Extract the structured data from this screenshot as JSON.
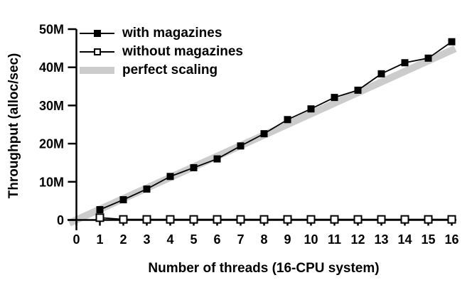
{
  "colors": {
    "foreground": "#000000",
    "background": "#ffffff",
    "band_gray": "#cccccc"
  },
  "legend": {
    "items": [
      {
        "label": "with magazines",
        "swatch": "line-with-filled-square"
      },
      {
        "label": "without magazines",
        "swatch": "line-with-open-square"
      },
      {
        "label": "perfect scaling",
        "swatch": "gray-band"
      }
    ]
  },
  "chart_data": {
    "type": "line",
    "title": "",
    "xlabel": "Number of threads (16-CPU system)",
    "ylabel": "Throughput (alloc/sec)",
    "xlim": [
      0,
      16
    ],
    "ylim_millions": [
      0,
      50
    ],
    "grid": false,
    "legend_position": "top-left",
    "x_ticks": [
      {
        "value": 0,
        "label": "0"
      },
      {
        "value": 1,
        "label": "1"
      },
      {
        "value": 2,
        "label": "2"
      },
      {
        "value": 3,
        "label": "3"
      },
      {
        "value": 4,
        "label": "4"
      },
      {
        "value": 5,
        "label": "5"
      },
      {
        "value": 6,
        "label": "6"
      },
      {
        "value": 7,
        "label": "7"
      },
      {
        "value": 8,
        "label": "8"
      },
      {
        "value": 9,
        "label": "9"
      },
      {
        "value": 10,
        "label": "10"
      },
      {
        "value": 11,
        "label": "11"
      },
      {
        "value": 12,
        "label": "12"
      },
      {
        "value": 13,
        "label": "13"
      },
      {
        "value": 14,
        "label": "14"
      },
      {
        "value": 15,
        "label": "15"
      },
      {
        "value": 16,
        "label": "16"
      }
    ],
    "y_ticks": [
      {
        "value_millions": 0,
        "label": "0"
      },
      {
        "value_millions": 10,
        "label": "10M"
      },
      {
        "value_millions": 20,
        "label": "20M"
      },
      {
        "value_millions": 30,
        "label": "30M"
      },
      {
        "value_millions": 40,
        "label": "40M"
      },
      {
        "value_millions": 50,
        "label": "50M"
      }
    ],
    "x": [
      1,
      2,
      3,
      4,
      5,
      6,
      7,
      8,
      9,
      10,
      11,
      12,
      13,
      14,
      15,
      16
    ],
    "series": [
      {
        "name": "with magazines",
        "marker": "filled-square",
        "color": "#000000",
        "values_millions": [
          2.7,
          5.3,
          8.1,
          11.4,
          13.7,
          16.0,
          19.4,
          22.6,
          26.3,
          29.1,
          32.1,
          34.0,
          38.3,
          41.2,
          42.4,
          46.7
        ]
      },
      {
        "name": "without magazines",
        "marker": "open-square",
        "color": "#000000",
        "values_millions": [
          0.6,
          0.15,
          0.15,
          0.15,
          0.15,
          0.15,
          0.15,
          0.15,
          0.15,
          0.15,
          0.15,
          0.15,
          0.15,
          0.15,
          0.15,
          0.15
        ]
      }
    ],
    "band": {
      "name": "perfect scaling",
      "color": "#cccccc",
      "x_start": -0.3,
      "value_start_millions": -0.8,
      "x_end": 16.15,
      "value_end_millions": 44.9,
      "thickness_px": 10
    }
  }
}
